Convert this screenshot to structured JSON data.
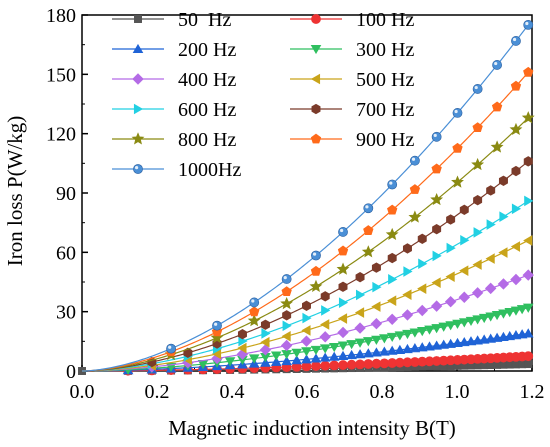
{
  "chart_data": {
    "type": "line",
    "xlabel": "Magnetic induction intensity B(T)",
    "ylabel": "Iron loss P(W/kg)",
    "xlim": [
      0,
      1.2
    ],
    "ylim": [
      0,
      180
    ],
    "xticks": [
      0.0,
      0.2,
      0.4,
      0.6,
      0.8,
      1.0,
      1.2
    ],
    "xtick_labels": [
      "0.0",
      "0.2",
      "0.4",
      "0.6",
      "0.8",
      "1.0",
      "1.2"
    ],
    "yticks": [
      0,
      30,
      60,
      90,
      120,
      150,
      180
    ],
    "ytick_labels": [
      "0",
      "30",
      "60",
      "90",
      "120",
      "150",
      "180"
    ],
    "grid": false,
    "legend_position": "top-left",
    "x_range_per_series": "0 to 1.19 T",
    "series": [
      {
        "name": "50  Hz",
        "color": "#555555",
        "marker": "square",
        "values_at_B_1_19": 3.5
      },
      {
        "name": "100 Hz",
        "color": "#ee3333",
        "marker": "circle",
        "values_at_B_1_19": 7.5
      },
      {
        "name": "200 Hz",
        "color": "#1f63d6",
        "marker": "triangle-up",
        "values_at_B_1_19": 19
      },
      {
        "name": "300 Hz",
        "color": "#2fbf5f",
        "marker": "triangle-down",
        "values_at_B_1_19": 32
      },
      {
        "name": "400 Hz",
        "color": "#b46be6",
        "marker": "diamond",
        "values_at_B_1_19": 48.5
      },
      {
        "name": "500 Hz",
        "color": "#c9a41a",
        "marker": "triangle-left",
        "values_at_B_1_19": 66
      },
      {
        "name": "600 Hz",
        "color": "#22d0e3",
        "marker": "triangle-right",
        "values_at_B_1_19": 86
      },
      {
        "name": "700 Hz",
        "color": "#7b3b2a",
        "marker": "hexagon",
        "values_at_B_1_19": 106
      },
      {
        "name": "800 Hz",
        "color": "#8a8a12",
        "marker": "star",
        "values_at_B_1_19": 128
      },
      {
        "name": "900 Hz",
        "color": "#ff6a1a",
        "marker": "pentagon",
        "values_at_B_1_19": 151
      },
      {
        "name": "1000Hz",
        "color": "#4a8fd6",
        "marker": "sphere",
        "values_at_B_1_19": 175
      }
    ]
  }
}
